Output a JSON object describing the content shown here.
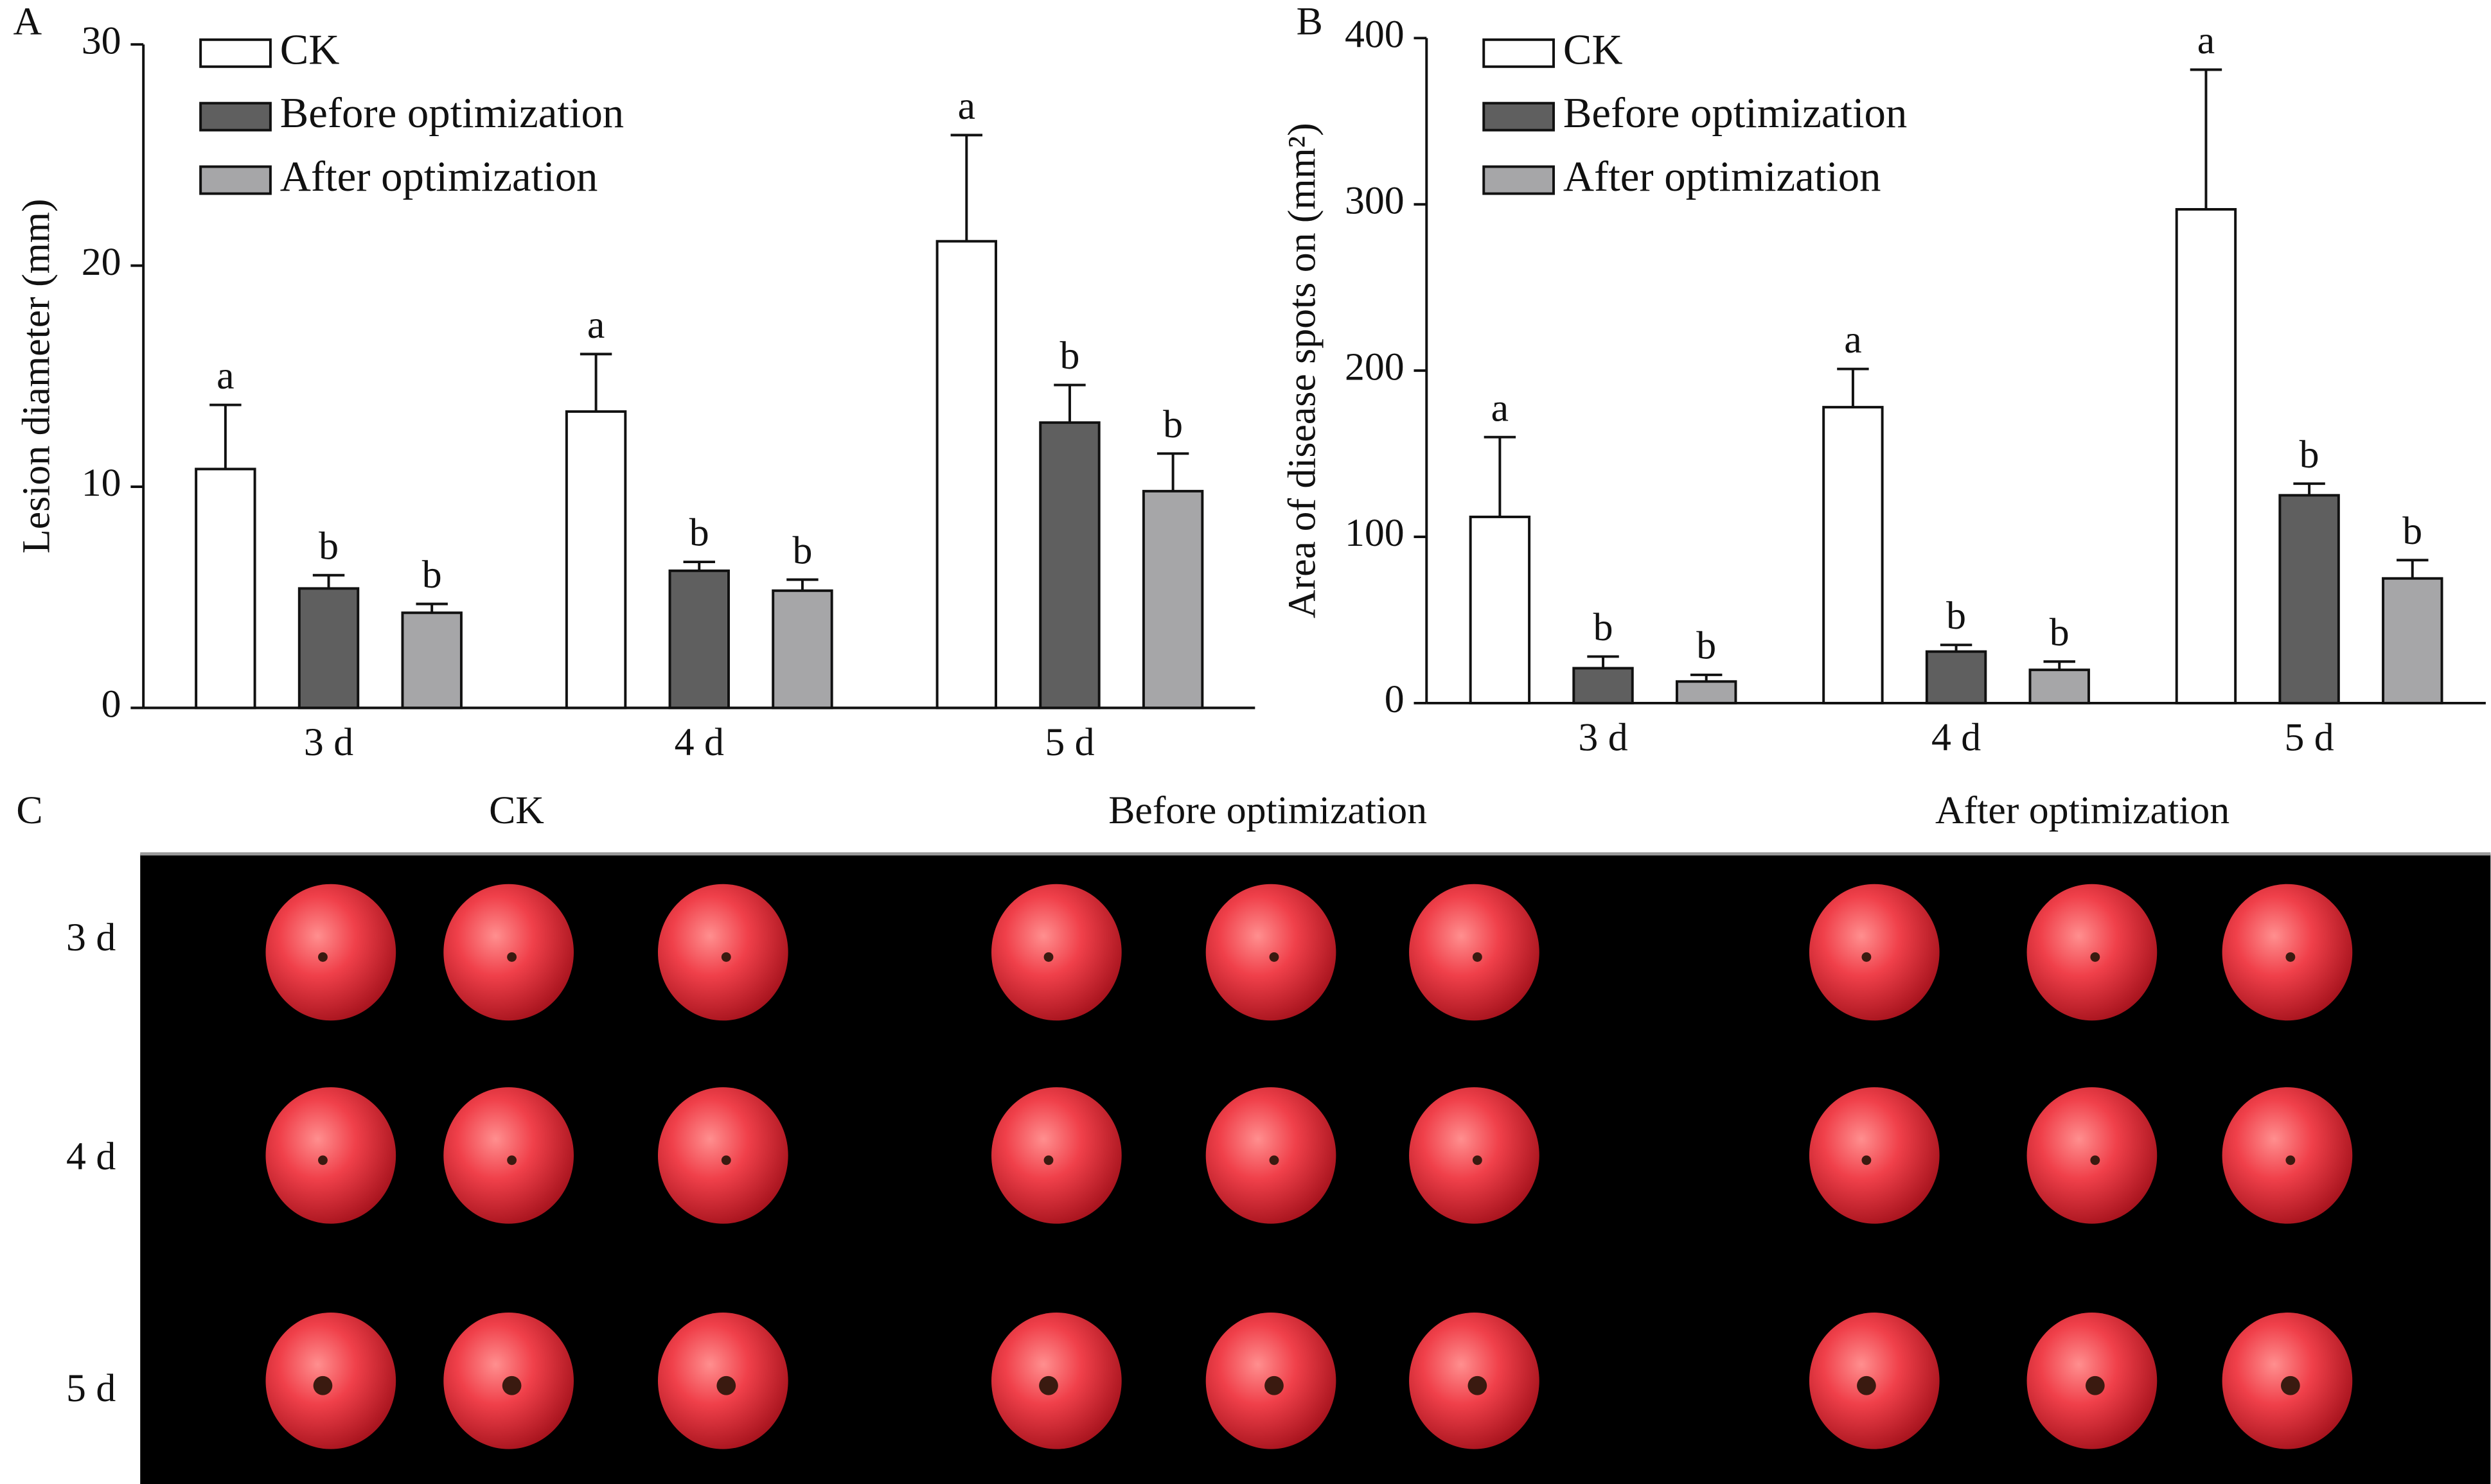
{
  "chart_data": [
    {
      "type": "bar",
      "panel_label": "A",
      "y_label": "Lesion diameter (mm)",
      "categories": [
        "3 d",
        "4 d",
        "5 d"
      ],
      "ylim": [
        0,
        30
      ],
      "yticks": [
        0,
        10,
        20,
        30
      ],
      "series": [
        {
          "name": "CK",
          "color": "#ffffff",
          "values": [
            10.8,
            13.4,
            21.1
          ],
          "errors": [
            2.9,
            2.6,
            4.8
          ],
          "letters": [
            "a",
            "a",
            "a"
          ]
        },
        {
          "name": "Before optimization",
          "color": "#5f5f5f",
          "values": [
            5.4,
            6.2,
            12.9
          ],
          "errors": [
            0.6,
            0.4,
            1.7
          ],
          "letters": [
            "b",
            "b",
            "b"
          ]
        },
        {
          "name": "After optimization",
          "color": "#a6a6a8",
          "values": [
            4.3,
            5.3,
            9.8
          ],
          "errors": [
            0.4,
            0.5,
            1.7
          ],
          "letters": [
            "b",
            "b",
            "b"
          ]
        }
      ]
    },
    {
      "type": "bar",
      "panel_label": "B",
      "y_label": "Area of disease spots on (mm²)",
      "categories": [
        "3 d",
        "4 d",
        "5 d"
      ],
      "ylim": [
        0,
        400
      ],
      "yticks": [
        0,
        100,
        200,
        300,
        400
      ],
      "series": [
        {
          "name": "CK",
          "color": "#ffffff",
          "values": [
            112,
            178,
            297
          ],
          "errors": [
            48,
            23,
            84
          ],
          "letters": [
            "a",
            "a",
            "a"
          ]
        },
        {
          "name": "Before optimization",
          "color": "#5f5f5f",
          "values": [
            21,
            31,
            125
          ],
          "errors": [
            7,
            4,
            7
          ],
          "letters": [
            "b",
            "b",
            "b"
          ]
        },
        {
          "name": "After optimization",
          "color": "#a6a6a8",
          "values": [
            13,
            20,
            75
          ],
          "errors": [
            4,
            5,
            11
          ],
          "letters": [
            "b",
            "b",
            "b"
          ]
        }
      ]
    }
  ],
  "photo_panel": {
    "panel_label": "C",
    "columns": [
      "CK",
      "Before optimization",
      "After optimization"
    ],
    "rows": [
      "3 d",
      "4 d",
      "5 d"
    ]
  }
}
